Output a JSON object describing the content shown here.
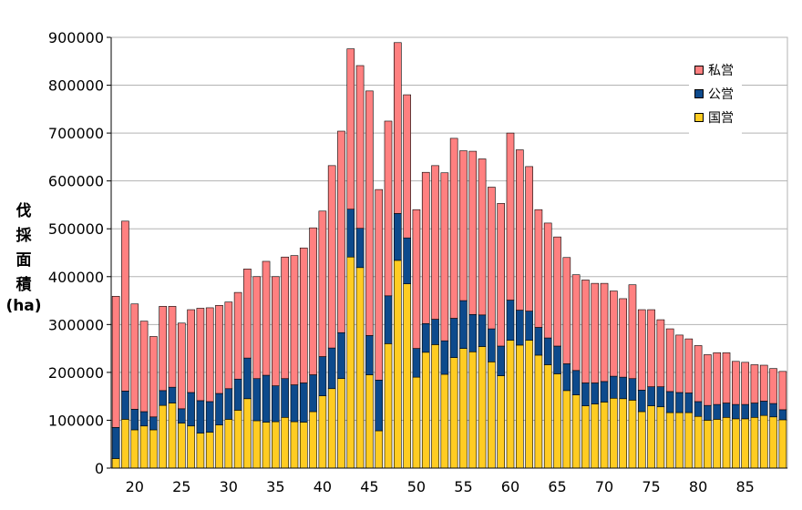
{
  "chart_data": {
    "type": "bar",
    "stacked": true,
    "ylabel": "伐採面積(ha)",
    "ylabel_lines": [
      "伐",
      "採",
      "面",
      "積",
      "(ha)"
    ],
    "ylim": [
      0,
      900000
    ],
    "yticks": [
      0,
      100000,
      200000,
      300000,
      400000,
      500000,
      600000,
      700000,
      800000,
      900000
    ],
    "xtick_labels": [
      "20",
      "25",
      "30",
      "35",
      "40",
      "45",
      "50",
      "55",
      "60",
      "65",
      "70",
      "75",
      "80",
      "85"
    ],
    "xtick_positions": [
      20,
      25,
      30,
      35,
      40,
      45,
      50,
      55,
      60,
      65,
      70,
      75,
      80,
      85
    ],
    "grid": true,
    "legend_position": "top-right",
    "x": [
      18,
      19,
      20,
      21,
      22,
      23,
      24,
      25,
      26,
      27,
      28,
      29,
      30,
      31,
      32,
      33,
      34,
      35,
      36,
      37,
      38,
      39,
      40,
      41,
      42,
      43,
      44,
      45,
      46,
      47,
      48,
      49,
      50,
      51,
      52,
      53,
      54,
      55,
      56,
      57,
      58,
      59,
      60,
      61,
      62,
      63,
      64,
      65,
      66,
      67,
      68,
      69,
      70,
      71,
      72,
      73,
      74,
      75,
      76,
      77,
      78,
      79,
      80,
      81,
      82,
      83,
      84,
      85,
      86,
      87,
      88,
      89
    ],
    "series": [
      {
        "name": "国営",
        "color": "#FFCC22",
        "values": [
          20000,
          102000,
          80000,
          88000,
          80000,
          131000,
          136000,
          94000,
          88000,
          73000,
          75000,
          90000,
          102000,
          121000,
          145000,
          99000,
          96000,
          97000,
          106000,
          97000,
          96000,
          118000,
          151000,
          166000,
          187000,
          441000,
          419000,
          195000,
          78000,
          260000,
          434000,
          385000,
          190000,
          242000,
          258000,
          196000,
          231000,
          250000,
          243000,
          254000,
          222000,
          193000,
          267000,
          257000,
          267000,
          236000,
          216000,
          197000,
          162000,
          153000,
          130000,
          134000,
          138000,
          146000,
          145000,
          142000,
          118000,
          130000,
          128000,
          116000,
          116000,
          116000,
          108000,
          100000,
          102000,
          106000,
          103000,
          103000,
          106000,
          110000,
          107000,
          101000
        ]
      },
      {
        "name": "公営",
        "color": "#0D4A8C",
        "values": [
          65000,
          59000,
          43000,
          30000,
          27000,
          31000,
          33000,
          30000,
          70000,
          68000,
          64000,
          66000,
          64000,
          65000,
          85000,
          88000,
          98000,
          75000,
          81000,
          77000,
          82000,
          77000,
          82000,
          85000,
          96000,
          100000,
          82000,
          82000,
          106000,
          100000,
          98000,
          96000,
          60000,
          60000,
          53000,
          70000,
          82000,
          100000,
          78000,
          66000,
          69000,
          62000,
          84000,
          73000,
          61000,
          58000,
          56000,
          58000,
          56000,
          51000,
          48000,
          44000,
          43000,
          46000,
          45000,
          45000,
          45000,
          40000,
          42000,
          44000,
          42000,
          41000,
          31000,
          31000,
          31000,
          30000,
          30000,
          30000,
          30000,
          30000,
          28000,
          21000
        ]
      },
      {
        "name": "私営",
        "color": "#FF8080",
        "values": [
          274000,
          355000,
          220000,
          189000,
          168000,
          176000,
          169000,
          179000,
          173000,
          193000,
          196000,
          184000,
          181000,
          181000,
          186000,
          213000,
          238000,
          228000,
          254000,
          270000,
          282000,
          307000,
          304000,
          381000,
          421000,
          335000,
          340000,
          511000,
          398000,
          365000,
          357000,
          299000,
          290000,
          316000,
          321000,
          351000,
          376000,
          313000,
          341000,
          326000,
          296000,
          298000,
          349000,
          335000,
          302000,
          246000,
          240000,
          228000,
          222000,
          200000,
          215000,
          208000,
          205000,
          178000,
          164000,
          196000,
          168000,
          161000,
          140000,
          131000,
          120000,
          113000,
          117000,
          106000,
          108000,
          105000,
          90000,
          88000,
          80000,
          75000,
          73000,
          80000
        ]
      }
    ]
  }
}
